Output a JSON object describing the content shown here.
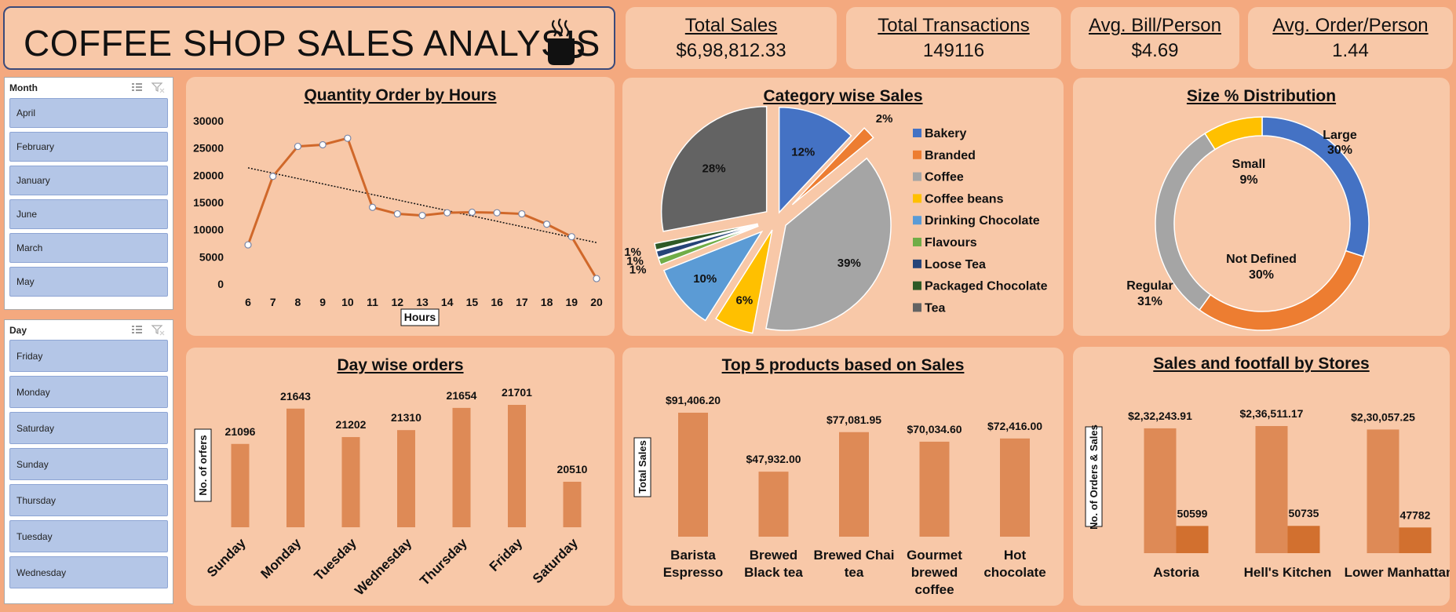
{
  "header": {
    "title": "COFFEE SHOP SALES ANALYSIS",
    "icon": "coffee-cup-icon"
  },
  "kpis": [
    {
      "label": "Total Sales",
      "value": "$6,98,812.33"
    },
    {
      "label": "Total Transactions",
      "value": "149116"
    },
    {
      "label": "Avg. Bill/Person",
      "value": "$4.69"
    },
    {
      "label": "Avg. Order/Person",
      "value": "1.44"
    }
  ],
  "slicers": {
    "month": {
      "title": "Month",
      "items": [
        "April",
        "February",
        "January",
        "June",
        "March",
        "May"
      ]
    },
    "day": {
      "title": "Day",
      "items": [
        "Friday",
        "Monday",
        "Saturday",
        "Sunday",
        "Thursday",
        "Tuesday",
        "Wednesday"
      ]
    }
  },
  "panels": {
    "hours": {
      "title": "Quantity Order by Hours"
    },
    "category": {
      "title": "Category wise Sales"
    },
    "size": {
      "title": "Size % Distribution"
    },
    "day": {
      "title": "Day wise orders"
    },
    "top5": {
      "title": "Top 5 products based on Sales"
    },
    "stores": {
      "title": "Sales and footfall by Stores"
    }
  },
  "colors": {
    "page_bg": "#f4a97f",
    "card_bg": "#f8c8a8",
    "line": "#d0682a",
    "bar": "#de8a56",
    "bar_dark": "#d2702f",
    "slicer_item": "#b4c6e7"
  },
  "chart_data": [
    {
      "type": "line",
      "name": "hours",
      "x": [
        6,
        7,
        8,
        9,
        10,
        11,
        12,
        13,
        14,
        15,
        16,
        17,
        18,
        19,
        20
      ],
      "values": [
        7200,
        19800,
        25300,
        25600,
        26800,
        14100,
        12900,
        12600,
        13100,
        13200,
        13100,
        12900,
        11000,
        8700,
        1000
      ],
      "ylim": [
        0,
        30000
      ],
      "yticks": [
        "0",
        "5000",
        "10000",
        "15000",
        "20000",
        "25000",
        "30000"
      ],
      "xticks": [
        "6",
        "7",
        "8",
        "9",
        "10",
        "11",
        "12",
        "13",
        "14",
        "15",
        "16",
        "17",
        "18",
        "19",
        "20"
      ],
      "xlabel": "Hours",
      "trendline": "linear"
    },
    {
      "type": "pie",
      "name": "category",
      "labels": [
        "Bakery",
        "Branded",
        "Coffee",
        "Coffee beans",
        "Drinking Chocolate",
        "Flavours",
        "Loose Tea",
        "Packaged Chocolate",
        "Tea"
      ],
      "values": [
        12,
        2,
        39,
        6,
        10,
        1,
        1,
        1,
        28
      ],
      "data_labels": [
        "12%",
        "2%",
        "39%",
        "6%",
        "10%",
        "1%",
        "1%",
        "1%",
        "28%"
      ],
      "colors": [
        "#4472c4",
        "#ed7d31",
        "#a5a5a5",
        "#ffc000",
        "#5b9bd5",
        "#70ad47",
        "#264478",
        "#2e5a26",
        "#636363"
      ],
      "legend": "right"
    },
    {
      "type": "pie",
      "name": "size",
      "labels": [
        "Large",
        "Not Defined",
        "Regular",
        "Small"
      ],
      "values": [
        30,
        30,
        31,
        9
      ],
      "data_labels": [
        "30%",
        "30%",
        "31%",
        "9%"
      ],
      "colors": [
        "#4472c4",
        "#ed7d31",
        "#a5a5a5",
        "#ffc000"
      ],
      "style": "doughnut"
    },
    {
      "type": "bar",
      "name": "day",
      "categories": [
        "Sunday",
        "Monday",
        "Tuesday",
        "Wednesday",
        "Thursday",
        "Friday",
        "Saturday"
      ],
      "values": [
        21096,
        21643,
        21202,
        21310,
        21654,
        21701,
        20510
      ],
      "data_labels": [
        "21096",
        "21643",
        "21202",
        "21310",
        "21654",
        "21701",
        "20510"
      ],
      "ylabel": "No. of orfers"
    },
    {
      "type": "bar",
      "name": "top5",
      "categories": [
        "Barista Espresso",
        "Brewed Black tea",
        "Brewed Chai tea",
        "Gourmet brewed coffee",
        "Hot chocolate"
      ],
      "category_lines": [
        [
          "Barista",
          "Espresso"
        ],
        [
          "Brewed",
          "Black tea"
        ],
        [
          "Brewed Chai",
          "tea"
        ],
        [
          "Gourmet",
          "brewed",
          "coffee"
        ],
        [
          "Hot",
          "chocolate"
        ]
      ],
      "values": [
        91406.2,
        47932.0,
        77081.95,
        70034.6,
        72416.0
      ],
      "data_labels": [
        "$91,406.20",
        "$47,932.00",
        "$77,081.95",
        "$70,034.60",
        "$72,416.00"
      ],
      "ylabel": "Total Sales"
    },
    {
      "type": "bar",
      "name": "stores",
      "categories": [
        "Astoria",
        "Hell's Kitchen",
        "Lower Manhattan"
      ],
      "series": [
        {
          "values": [
            232243.91,
            236511.17,
            230057.25
          ],
          "data_labels": [
            "$2,32,243.91",
            "$2,36,511.17",
            "$2,30,057.25"
          ]
        },
        {
          "values": [
            50599,
            50735,
            47782
          ],
          "data_labels": [
            "50599",
            "50735",
            "47782"
          ]
        }
      ],
      "ylabel": "No. of Orders & Sales"
    }
  ]
}
